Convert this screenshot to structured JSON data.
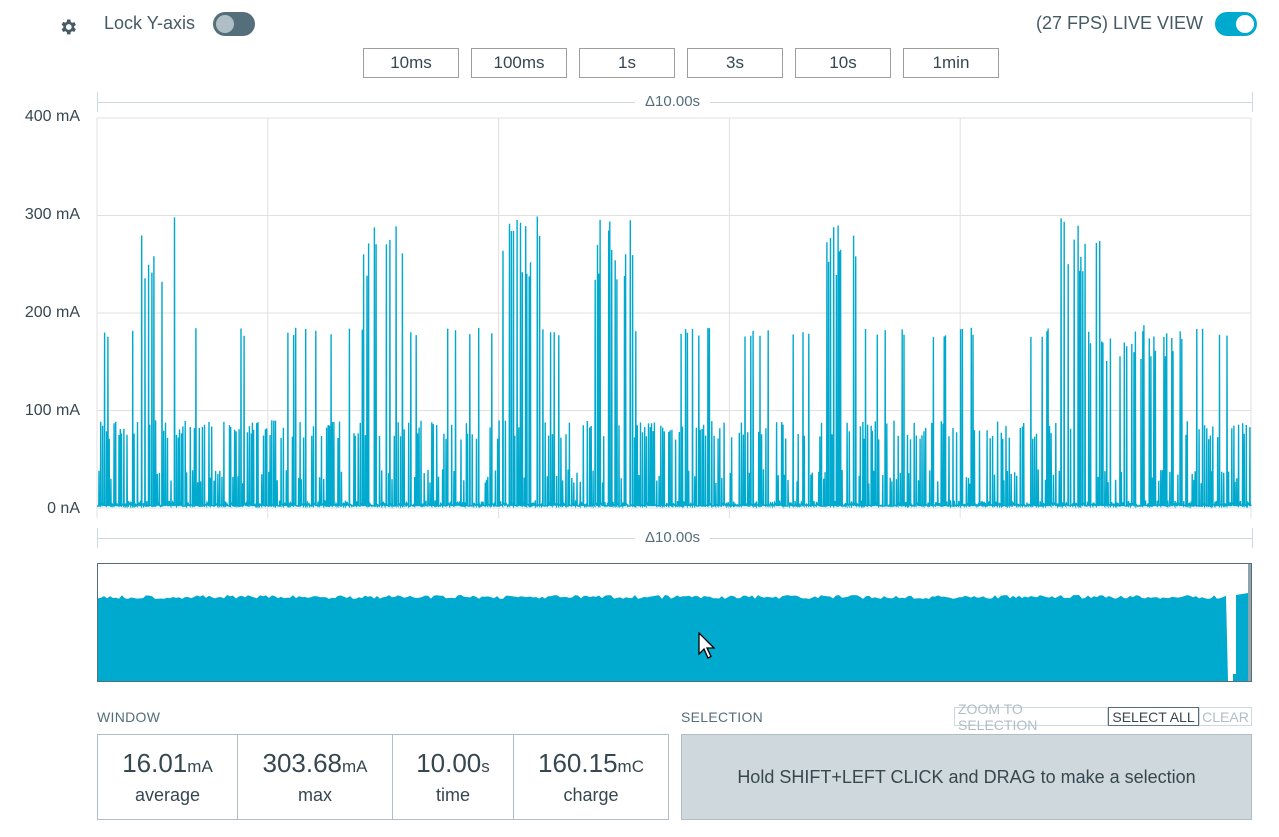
{
  "toolbar": {
    "lock_label": "Lock Y-axis",
    "lock_on": false,
    "live_label": "(27 FPS) LIVE VIEW",
    "live_on": true,
    "windows": [
      "10ms",
      "100ms",
      "1s",
      "3s",
      "10s",
      "1min"
    ]
  },
  "main_chart": {
    "delta_label": "Δ10.00s",
    "y_ticks": [
      "400 mA",
      "300 mA",
      "200 mA",
      "100 mA",
      "0 nA"
    ]
  },
  "minimap": {
    "delta_label": "Δ10.00s"
  },
  "window_panel": {
    "title": "WINDOW",
    "stats": [
      {
        "value": "16.01",
        "unit": "mA",
        "label": "average"
      },
      {
        "value": "303.68",
        "unit": "mA",
        "label": "max"
      },
      {
        "value": "10.00",
        "unit": "s",
        "label": "time"
      },
      {
        "value": "160.15",
        "unit": "mC",
        "label": "charge"
      }
    ]
  },
  "selection_panel": {
    "title": "SELECTION",
    "zoom_label": "ZOOM TO SELECTION",
    "select_all_label": "SELECT ALL",
    "clear_label": "CLEAR",
    "hint": "Hold SHIFT+LEFT CLICK and DRAG to make a selection"
  },
  "colors": {
    "trace": "#00a9ce",
    "grid": "#e0e0e0",
    "toggle_on": "#00a9ce",
    "toggle_off": "#546e7a",
    "selection_bg": "#cfd8dc"
  },
  "chart_data": {
    "type": "line",
    "title": "",
    "xlabel": "",
    "ylabel": "",
    "x_unit": "s",
    "xlim": [
      0,
      10
    ],
    "ylim": [
      0,
      400
    ],
    "y_unit": "mA",
    "grid": true,
    "series": [
      {
        "values_description_free": true,
        "burst_times_s": [
          0.35,
          2.3,
          3.5,
          4.3,
          6.3,
          8.35
        ],
        "burst_peak_mA": [
          302,
          303,
          300,
          303,
          299,
          293
        ],
        "baseline_mA": 2,
        "periodic_pulse_mA": [
          40,
          90,
          185
        ],
        "dense_region_s": [
          8.5,
          9.4
        ],
        "dense_region_peak_mA": 188
      }
    ]
  }
}
